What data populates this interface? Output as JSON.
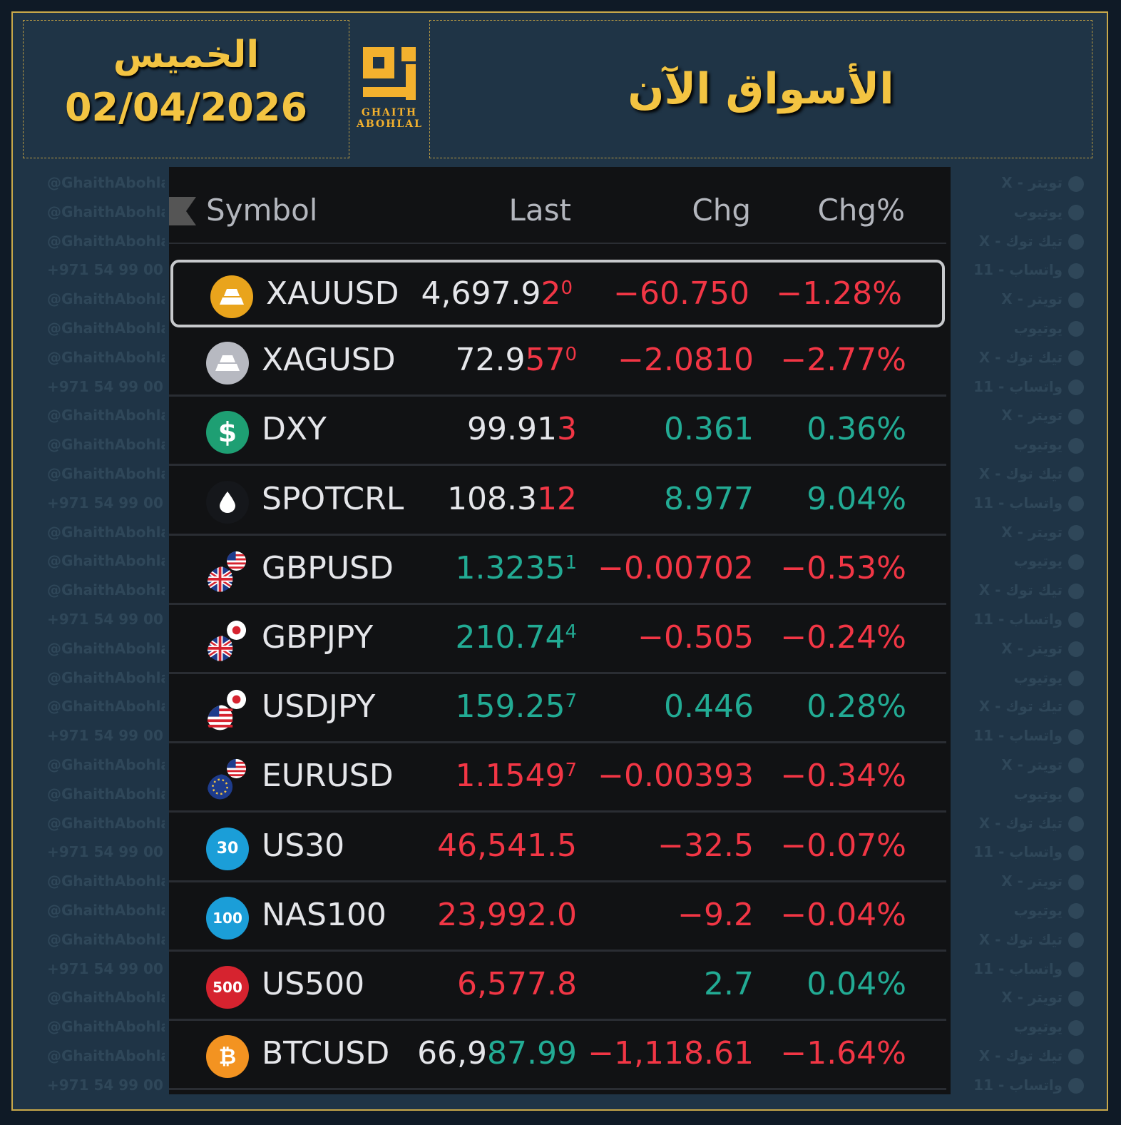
{
  "header": {
    "day": "الخميس",
    "date": "02/04/2026",
    "title": "الأسواق الآن",
    "logo_line1": "GHAITH",
    "logo_line2": "ABOHLAL"
  },
  "watermark": {
    "handle": "@GhaithAbohlal",
    "phone": "+971 54 99 00",
    "twitter": "تويتر - X",
    "youtube": "يوتيوب",
    "tiktok": "تيك توك - X",
    "whatsapp": "واتساب - 11"
  },
  "table": {
    "columns": {
      "symbol": "Symbol",
      "last": "Last",
      "chg": "Chg",
      "chgpct": "Chg%"
    },
    "rows": [
      {
        "symbol": "XAUUSD",
        "icon": "gold-bar-icon",
        "last_main": "4,697.9",
        "last_hl": "2",
        "last_sup": "0",
        "chg": "−60.750",
        "pct": "−1.28%",
        "dir": "down",
        "last_color": "white"
      },
      {
        "symbol": "XAGUSD",
        "icon": "silver-bar-icon",
        "last_main": "72.9",
        "last_hl": "57",
        "last_sup": "0",
        "chg": "−2.0810",
        "pct": "−2.77%",
        "dir": "down",
        "last_color": "white"
      },
      {
        "symbol": "DXY",
        "icon": "dollar-icon",
        "last_main": "99.91",
        "last_hl": "3",
        "last_sup": "",
        "chg": "0.361",
        "pct": "0.36%",
        "dir": "up",
        "last_color": "white"
      },
      {
        "symbol": "SPOTCRL",
        "icon": "oil-drop-icon",
        "last_main": "108.3",
        "last_hl": "12",
        "last_sup": "",
        "chg": "8.977",
        "pct": "9.04%",
        "dir": "up",
        "last_color": "white"
      },
      {
        "symbol": "GBPUSD",
        "icon": "gbp-usd-flags-icon",
        "last_main": "1.3235",
        "last_hl": "",
        "last_sup": "1",
        "chg": "−0.00702",
        "pct": "−0.53%",
        "dir": "down",
        "last_color": "green"
      },
      {
        "symbol": "GBPJPY",
        "icon": "gbp-jpy-flags-icon",
        "last_main": "210.74",
        "last_hl": "",
        "last_sup": "4",
        "chg": "−0.505",
        "pct": "−0.24%",
        "dir": "down",
        "last_color": "green"
      },
      {
        "symbol": "USDJPY",
        "icon": "usd-jpy-flags-icon",
        "last_main": "159.25",
        "last_hl": "",
        "last_sup": "7",
        "chg": "0.446",
        "pct": "0.28%",
        "dir": "up",
        "last_color": "green"
      },
      {
        "symbol": "EURUSD",
        "icon": "eur-usd-flags-icon",
        "last_main": "1.1549",
        "last_hl": "",
        "last_sup": "7",
        "chg": "−0.00393",
        "pct": "−0.34%",
        "dir": "down",
        "last_color": "red"
      },
      {
        "symbol": "US30",
        "icon": "us30-icon",
        "last_main": "46,541.5",
        "last_hl": "",
        "last_sup": "",
        "chg": "−32.5",
        "pct": "−0.07%",
        "dir": "down",
        "last_color": "red"
      },
      {
        "symbol": "NAS100",
        "icon": "nas100-icon",
        "last_main": "23,992.0",
        "last_hl": "",
        "last_sup": "",
        "chg": "−9.2",
        "pct": "−0.04%",
        "dir": "down",
        "last_color": "red"
      },
      {
        "symbol": "US500",
        "icon": "us500-icon",
        "last_main": "6,577.8",
        "last_hl": "",
        "last_sup": "",
        "chg": "2.7",
        "pct": "0.04%",
        "dir": "up",
        "last_color": "red"
      },
      {
        "symbol": "BTCUSD",
        "icon": "bitcoin-icon",
        "last_main": "66,9",
        "last_hl": "87.99",
        "last_sup": "",
        "chg": "−1,118.61",
        "pct": "−1.64%",
        "dir": "down",
        "last_color": "white",
        "hl_color": "green"
      }
    ]
  },
  "colors": {
    "up": "#22ab94",
    "down": "#f23645",
    "accent": "#f3c442"
  }
}
